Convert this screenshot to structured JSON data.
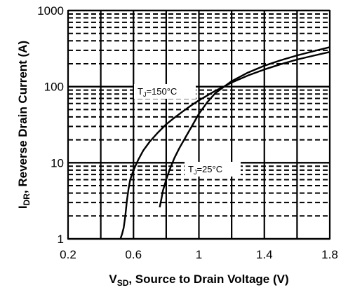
{
  "chart_data": {
    "type": "line",
    "title": "",
    "xlabel": {
      "prefix": "V",
      "sub": "SD",
      "rest": ", Source to Drain Voltage (V)"
    },
    "ylabel": {
      "prefix": "I",
      "sub": "DR",
      "rest": ", Reverse Drain Current (A)"
    },
    "xlim": [
      0.2,
      1.8
    ],
    "ylim": [
      1,
      1000
    ],
    "yscale": "log",
    "xticks": [
      0.2,
      0.6,
      1.0,
      1.4,
      1.8
    ],
    "xtick_labels": [
      "0.2",
      "0.6",
      "1",
      "1.4",
      "1.8"
    ],
    "yticks": [
      1,
      10,
      100,
      1000
    ],
    "ytick_labels": [
      "1",
      "10",
      "100",
      "1000"
    ],
    "grid": true,
    "legend": "none",
    "series": [
      {
        "label": {
          "prefix": "T",
          "sub": "J",
          "rest": "=150°C"
        },
        "color": "#000000",
        "points": [
          [
            0.52,
            1.0
          ],
          [
            0.53,
            1.15
          ],
          [
            0.54,
            1.4
          ],
          [
            0.55,
            2.0
          ],
          [
            0.56,
            3.2
          ],
          [
            0.57,
            4.6
          ],
          [
            0.58,
            6.0
          ],
          [
            0.6,
            8.0
          ],
          [
            0.63,
            11
          ],
          [
            0.66,
            14.5
          ],
          [
            0.7,
            19
          ],
          [
            0.75,
            25
          ],
          [
            0.8,
            32
          ],
          [
            0.85,
            39
          ],
          [
            0.9,
            47
          ],
          [
            0.95,
            56
          ],
          [
            1.0,
            66
          ],
          [
            1.1,
            88
          ],
          [
            1.2,
            113
          ],
          [
            1.3,
            140
          ],
          [
            1.4,
            168
          ],
          [
            1.5,
            197
          ],
          [
            1.6,
            227
          ],
          [
            1.7,
            255
          ],
          [
            1.8,
            285
          ]
        ]
      },
      {
        "label": {
          "prefix": "T",
          "sub": "J",
          "rest": "=25°C"
        },
        "color": "#000000",
        "points": [
          [
            0.76,
            2.6
          ],
          [
            0.77,
            3.3
          ],
          [
            0.78,
            4.3
          ],
          [
            0.8,
            6.0
          ],
          [
            0.82,
            8.0
          ],
          [
            0.85,
            11.5
          ],
          [
            0.88,
            15.5
          ],
          [
            0.92,
            22
          ],
          [
            0.96,
            31
          ],
          [
            1.0,
            44
          ],
          [
            1.05,
            62
          ],
          [
            1.1,
            82
          ],
          [
            1.2,
            118
          ],
          [
            1.3,
            153
          ],
          [
            1.4,
            188
          ],
          [
            1.5,
            222
          ],
          [
            1.6,
            257
          ],
          [
            1.7,
            292
          ],
          [
            1.8,
            330
          ]
        ]
      }
    ]
  }
}
